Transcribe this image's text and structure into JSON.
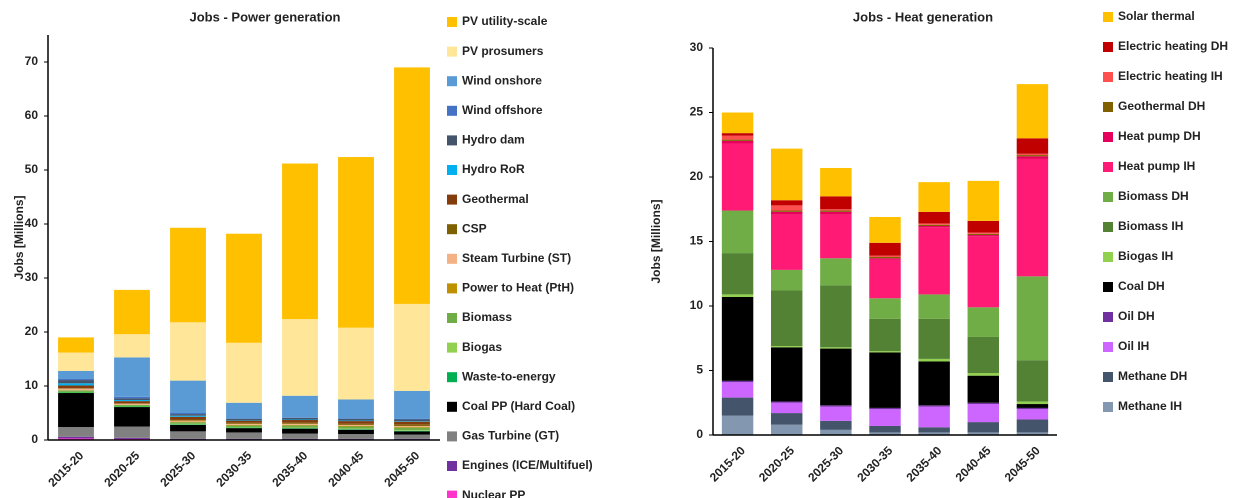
{
  "chart_data": [
    {
      "type": "stacked_bar",
      "title": "Jobs - Power generation",
      "y_label": "Jobs [Millions]",
      "categories": [
        "2015-20",
        "2020-25",
        "2025-30",
        "2030-35",
        "2035-40",
        "2040-45",
        "2045-50"
      ],
      "ylim": [
        0,
        75
      ],
      "yticks": [
        0,
        10,
        20,
        30,
        40,
        50,
        60,
        70
      ],
      "series": [
        {
          "name": "PV utility-scale",
          "color": "#FFC000",
          "values": [
            2.8,
            8.2,
            17.5,
            20.2,
            28.8,
            31.6,
            43.8
          ]
        },
        {
          "name": "PV prosumers",
          "color": "#FFE699",
          "values": [
            3.4,
            4.3,
            10.8,
            11.1,
            14.2,
            13.3,
            16.1
          ]
        },
        {
          "name": "Wind onshore",
          "color": "#5B9BD5",
          "values": [
            1.5,
            7.3,
            6.0,
            2.9,
            4.0,
            3.5,
            5.2
          ]
        },
        {
          "name": "Wind offshore",
          "color": "#4472C4",
          "values": [
            0.2,
            0.3,
            0.2,
            0.1,
            0.1,
            0.1,
            0.1
          ]
        },
        {
          "name": "Hydro dam",
          "color": "#44546A",
          "values": [
            0.6,
            0.3,
            0.3,
            0.2,
            0.3,
            0.3,
            0.3
          ]
        },
        {
          "name": "Hydro RoR",
          "color": "#00B0F0",
          "values": [
            0.4,
            0.2,
            0.2,
            0.1,
            0.1,
            0.1,
            0.1
          ]
        },
        {
          "name": "Geothermal",
          "color": "#843C0C",
          "values": [
            0.5,
            0.4,
            0.5,
            0.4,
            0.5,
            0.5,
            0.5
          ]
        },
        {
          "name": "CSP",
          "color": "#7F6000",
          "values": [
            0.1,
            0.1,
            0.2,
            0.2,
            0.2,
            0.2,
            0.3
          ]
        },
        {
          "name": "Steam Turbine (ST)",
          "color": "#F4B183",
          "values": [
            0.3,
            0.2,
            0.2,
            0.2,
            0.2,
            0.2,
            0.2
          ]
        },
        {
          "name": "Power to Heat (PtH)",
          "color": "#BF9000",
          "values": [
            0,
            0,
            0.1,
            0.1,
            0.1,
            0.1,
            0.1
          ]
        },
        {
          "name": "Biomass",
          "color": "#70AD47",
          "values": [
            0.3,
            0.2,
            0.3,
            0.3,
            0.4,
            0.4,
            0.5
          ]
        },
        {
          "name": "Biogas",
          "color": "#92D050",
          "values": [
            0.1,
            0.1,
            0.1,
            0.1,
            0.1,
            0.1,
            0.1
          ]
        },
        {
          "name": "Waste-to-energy",
          "color": "#00B050",
          "values": [
            0.1,
            0.1,
            0.1,
            0.1,
            0.1,
            0.1,
            0.1
          ]
        },
        {
          "name": "Coal PP (Hard Coal)",
          "color": "#000000",
          "values": [
            6.3,
            3.6,
            1.2,
            0.8,
            0.9,
            0.8,
            0.6
          ]
        },
        {
          "name": "Gas Turbine (GT)",
          "color": "#808080",
          "values": [
            1.8,
            2.1,
            1.4,
            1.2,
            1.0,
            0.9,
            0.8
          ]
        },
        {
          "name": "Engines (ICE/Multifuel)",
          "color": "#7030A0",
          "values": [
            0.3,
            0.2,
            0.1,
            0.1,
            0.1,
            0.1,
            0.1
          ]
        },
        {
          "name": "Nuclear PP",
          "color": "#FF33CC",
          "values": [
            0.3,
            0.2,
            0.1,
            0.1,
            0.1,
            0.1,
            0.1
          ]
        }
      ]
    },
    {
      "type": "stacked_bar",
      "title": "Jobs - Heat generation",
      "y_label": "Jobs [Millions]",
      "categories": [
        "2015-20",
        "2020-25",
        "2025-30",
        "2030-35",
        "2035-40",
        "2040-45",
        "2045-50"
      ],
      "ylim": [
        0,
        30
      ],
      "yticks": [
        0,
        5,
        10,
        15,
        20,
        25,
        30
      ],
      "series": [
        {
          "name": "Solar thermal",
          "color": "#FFC000",
          "values": [
            1.6,
            4.0,
            2.2,
            2.0,
            2.3,
            3.1,
            4.2
          ]
        },
        {
          "name": "Electric heating DH",
          "color": "#C00000",
          "values": [
            0.2,
            0.4,
            1.0,
            1.0,
            0.9,
            0.9,
            1.2
          ]
        },
        {
          "name": "Electric heating IH",
          "color": "#FF5050",
          "values": [
            0.3,
            0.4,
            0.1,
            0.1,
            0.1,
            0.1,
            0.1
          ]
        },
        {
          "name": "Geothermal DH",
          "color": "#806000",
          "values": [
            0.1,
            0.1,
            0.1,
            0.1,
            0.1,
            0.1,
            0.1
          ]
        },
        {
          "name": "Heat pump DH",
          "color": "#E6005C",
          "values": [
            0.2,
            0.2,
            0.2,
            0.1,
            0.1,
            0.1,
            0.2
          ]
        },
        {
          "name": "Heat pump IH",
          "color": "#FF1A75",
          "values": [
            5.2,
            4.3,
            3.4,
            3.0,
            5.2,
            5.5,
            9.1
          ]
        },
        {
          "name": "Biomass DH",
          "color": "#70AD47",
          "values": [
            3.3,
            1.6,
            2.1,
            1.6,
            1.9,
            2.3,
            6.5
          ]
        },
        {
          "name": "Biomass IH",
          "color": "#548235",
          "values": [
            3.2,
            4.3,
            4.8,
            2.5,
            3.1,
            2.8,
            3.2
          ]
        },
        {
          "name": "Biogas IH",
          "color": "#92D050",
          "values": [
            0.2,
            0.1,
            0.1,
            0.1,
            0.2,
            0.2,
            0.2
          ]
        },
        {
          "name": "Coal DH",
          "color": "#000000",
          "values": [
            6.5,
            4.2,
            4.4,
            4.3,
            3.4,
            2.1,
            0.3
          ]
        },
        {
          "name": "Oil DH",
          "color": "#7030A0",
          "values": [
            0.1,
            0.1,
            0.1,
            0.1,
            0.1,
            0.1,
            0.1
          ]
        },
        {
          "name": "Oil IH",
          "color": "#CC66FF",
          "values": [
            1.2,
            0.8,
            1.1,
            1.3,
            1.6,
            1.4,
            0.8
          ]
        },
        {
          "name": "Methane DH",
          "color": "#44546A",
          "values": [
            1.4,
            0.9,
            0.7,
            0.5,
            0.4,
            0.8,
            1.0
          ]
        },
        {
          "name": "Methane IH",
          "color": "#8497B0",
          "values": [
            1.5,
            0.8,
            0.4,
            0.2,
            0.2,
            0.2,
            0.2
          ]
        }
      ]
    }
  ]
}
